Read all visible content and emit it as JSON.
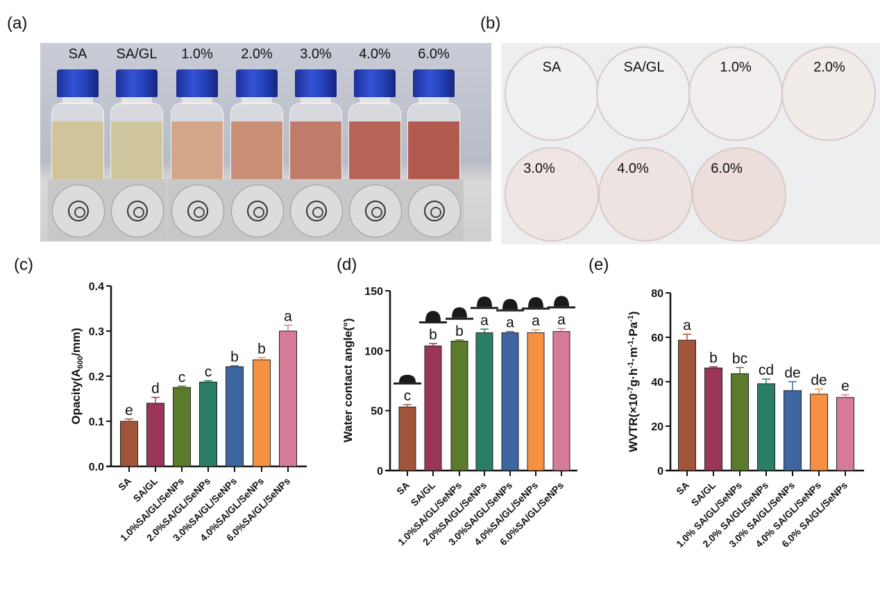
{
  "panels": {
    "a": "(a)",
    "b": "(b)",
    "c": "(c)",
    "d": "(d)",
    "e": "(e)"
  },
  "photo_a": {
    "labels": [
      "SA",
      "SA/GL",
      "1.0%",
      "2.0%",
      "3.0%",
      "4.0%",
      "6.0%"
    ],
    "liquid_colors": [
      "#cfc49a",
      "#cfc69d",
      "#d3a589",
      "#c88e76",
      "#c07b6a",
      "#b66458",
      "#b35a50"
    ]
  },
  "photo_b": {
    "labels": [
      "SA",
      "SA/GL",
      "1.0%",
      "2.0%",
      "3.0%",
      "4.0%",
      "6.0%"
    ],
    "film_colors": [
      "#f1f1f1",
      "#f0f0f0",
      "#f1eeed",
      "#f1ebea",
      "#efe6e4",
      "#ede3e1",
      "#ebdedb"
    ]
  },
  "colors": [
    "#a0553a",
    "#9b3459",
    "#5b7a2c",
    "#2b7e66",
    "#3e66a0",
    "#f69143",
    "#d67b98"
  ],
  "chart_data": [
    {
      "type": "bar",
      "title": "",
      "ylabel_parts": [
        {
          "t": "Opacity(A"
        },
        {
          "sub": "600"
        },
        {
          "t": "/mm)"
        }
      ],
      "categories": [
        "SA",
        "SA/GL",
        "1.0%SA/GL/SeNPs",
        "2.0%SA/GL/SeNPs",
        "3.0%SA/GL/SeNPs",
        "4.0%SA/GL/SeNPs",
        "6.0%SA/GL/SeNPs"
      ],
      "values": [
        0.1,
        0.14,
        0.175,
        0.187,
        0.221,
        0.236,
        0.3
      ],
      "errors": [
        0.005,
        0.013,
        0.003,
        0.003,
        0.002,
        0.005,
        0.013
      ],
      "letters": [
        "e",
        "d",
        "c",
        "c",
        "b",
        "b",
        "a"
      ],
      "ylim": [
        0,
        0.4
      ],
      "yticks": [
        "0.0",
        "0.1",
        "0.2",
        "0.3",
        "0.4"
      ],
      "ytick_values": [
        0,
        0.1,
        0.2,
        0.3,
        0.4
      ]
    },
    {
      "type": "bar",
      "title": "",
      "ylabel_parts": [
        {
          "t": "Water contact angle(°)"
        }
      ],
      "categories": [
        "SA",
        "SA/GL",
        "1.0%SA/GL/SeNPs",
        "2.0%SA/GL/SeNPs",
        "3.0%SA/GL/SeNPs",
        "4.0%SA/GL/SeNPs",
        "6.0%SA/GL/SeNPs"
      ],
      "values": [
        53,
        104,
        108,
        115,
        115,
        115,
        116
      ],
      "errors": [
        2,
        2,
        1,
        3,
        1,
        2.5,
        2.5
      ],
      "letters": [
        "c",
        "b",
        "b",
        "a",
        "a",
        "a",
        "a"
      ],
      "droplets": true,
      "ylim": [
        0,
        150
      ],
      "yticks": [
        "0",
        "50",
        "100",
        "150"
      ],
      "ytick_values": [
        0,
        50,
        100,
        150
      ]
    },
    {
      "type": "bar",
      "title": "",
      "ylabel_parts": [
        {
          "t": "WVTR(×10"
        },
        {
          "sup": "-7"
        },
        {
          "t": "g·h"
        },
        {
          "sup": "-1"
        },
        {
          "t": "·m"
        },
        {
          "sup": "-1"
        },
        {
          "t": "·Pa"
        },
        {
          "sup": "-1"
        },
        {
          "t": ")"
        }
      ],
      "categories": [
        "SA",
        "SA/GL",
        "1.0% SA/GL/SeNPs",
        "2.0% SA/GL/SeNPs",
        "3.0% SA/GL/SeNPs",
        "4.0% SA/GL/SeNPs",
        "6.0% SA/GL/SeNPs"
      ],
      "values": [
        58.7,
        46.2,
        43.6,
        39.1,
        36.0,
        34.4,
        32.9
      ],
      "errors": [
        2.7,
        0.5,
        2.8,
        2.1,
        4.0,
        2.3,
        1.2
      ],
      "letters": [
        "a",
        "b",
        "bc",
        "cd",
        "de",
        "de",
        "e"
      ],
      "ylim": [
        0,
        80
      ],
      "yticks": [
        "0",
        "20",
        "40",
        "60",
        "80"
      ],
      "ytick_values": [
        0,
        20,
        40,
        60,
        80
      ]
    }
  ]
}
